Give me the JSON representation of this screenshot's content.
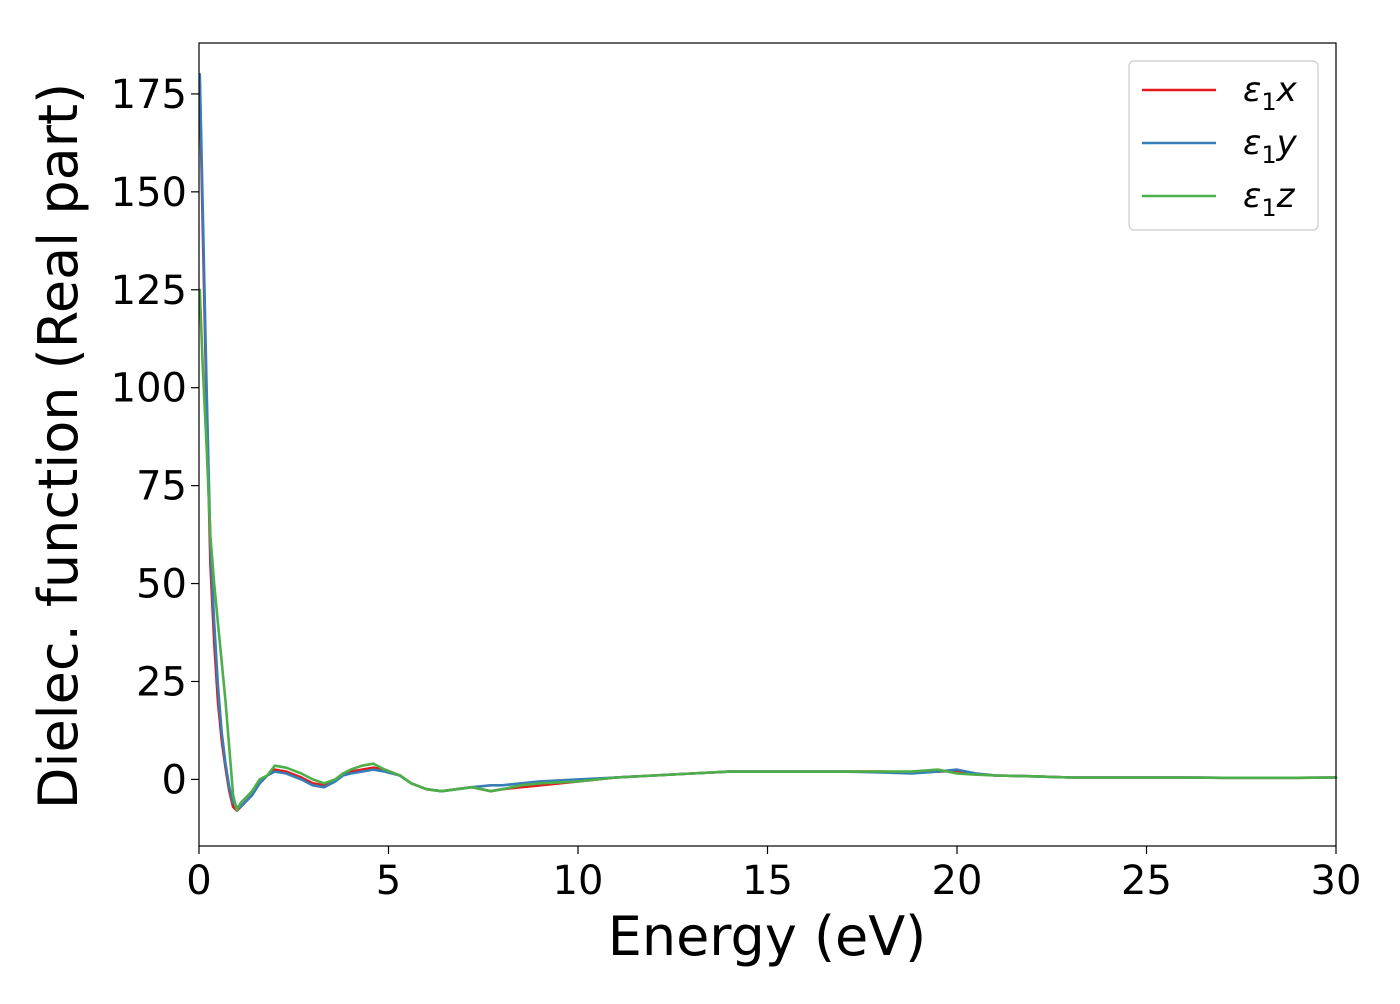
{
  "chart_data": {
    "type": "line",
    "title": "",
    "xlabel": "Energy (eV)",
    "ylabel": "Dielec. function (Real part)",
    "xlim": [
      0,
      30
    ],
    "ylim": [
      -17,
      188
    ],
    "xticks": [
      0,
      5,
      10,
      15,
      20,
      25,
      30
    ],
    "yticks": [
      0,
      25,
      50,
      75,
      100,
      125,
      150,
      175
    ],
    "grid": false,
    "legend_position": "top-right",
    "series": [
      {
        "name": "ε₁x",
        "legend": {
          "sym": "ε",
          "sub": "1",
          "axis": "x"
        },
        "color": "#e41a1c",
        "x": [
          0.02,
          0.1,
          0.2,
          0.3,
          0.4,
          0.5,
          0.6,
          0.7,
          0.8,
          0.9,
          1.0,
          1.1,
          1.2,
          1.4,
          1.6,
          1.8,
          2.0,
          2.3,
          2.7,
          3.0,
          3.3,
          3.6,
          3.8,
          4.0,
          4.3,
          4.6,
          4.9,
          5.3,
          5.6,
          6.0,
          6.4,
          6.8,
          7.2,
          7.7,
          8.0,
          8.5,
          9.0,
          10.0,
          11.0,
          12.0,
          13.0,
          14.0,
          15.0,
          16.0,
          17.0,
          18.0,
          18.8,
          19.5,
          20.0,
          20.5,
          21.0,
          22.0,
          23.0,
          24.0,
          25.0,
          26.0,
          27.0,
          28.0,
          29.0,
          30.0
        ],
        "y": [
          178,
          140,
          95,
          55,
          35,
          20,
          10,
          3,
          -3,
          -7,
          -8,
          -7,
          -6,
          -4,
          -1,
          1,
          2.5,
          2,
          0.5,
          -1,
          -1.5,
          0,
          1.5,
          2,
          2.5,
          3,
          2.5,
          1,
          -1,
          -2.5,
          -3,
          -2.5,
          -2,
          -3,
          -2.5,
          -2,
          -1.5,
          -0.5,
          0.5,
          1,
          1.5,
          2,
          2,
          2,
          2,
          2,
          1.8,
          2,
          2.2,
          1.5,
          1,
          0.8,
          0.5,
          0.5,
          0.5,
          0.5,
          0.4,
          0.4,
          0.4,
          0.5
        ]
      },
      {
        "name": "ε₁y",
        "legend": {
          "sym": "ε",
          "sub": "1",
          "axis": "y"
        },
        "color": "#377eb8",
        "x": [
          0.02,
          0.1,
          0.2,
          0.3,
          0.4,
          0.5,
          0.6,
          0.7,
          0.8,
          0.9,
          1.0,
          1.1,
          1.2,
          1.4,
          1.6,
          1.8,
          2.0,
          2.3,
          2.7,
          3.0,
          3.3,
          3.6,
          3.8,
          4.0,
          4.3,
          4.6,
          4.9,
          5.3,
          5.6,
          6.0,
          6.4,
          6.8,
          7.2,
          7.7,
          8.0,
          8.5,
          9.0,
          10.0,
          11.0,
          12.0,
          13.0,
          14.0,
          15.0,
          16.0,
          17.0,
          18.0,
          18.8,
          19.5,
          20.0,
          20.5,
          21.0,
          22.0,
          23.0,
          24.0,
          25.0,
          26.0,
          27.0,
          28.0,
          29.0,
          30.0
        ],
        "y": [
          180,
          145,
          100,
          60,
          40,
          24,
          12,
          4,
          -2,
          -6,
          -7,
          -7,
          -6,
          -4,
          -1,
          1,
          2,
          1.5,
          0,
          -1.5,
          -2,
          -0.5,
          1,
          1.5,
          2,
          2.5,
          2,
          1,
          -1,
          -2.5,
          -3,
          -2.5,
          -2,
          -1.5,
          -1.5,
          -1,
          -0.5,
          0,
          0.5,
          1,
          1.5,
          2,
          2,
          2,
          2,
          1.8,
          1.5,
          2,
          2.5,
          1.5,
          1,
          0.8,
          0.5,
          0.5,
          0.5,
          0.5,
          0.4,
          0.4,
          0.4,
          0.5
        ]
      },
      {
        "name": "ε₁z",
        "legend": {
          "sym": "ε",
          "sub": "1",
          "axis": "z"
        },
        "color": "#4daf4a",
        "x": [
          0.02,
          0.1,
          0.2,
          0.3,
          0.4,
          0.5,
          0.6,
          0.7,
          0.8,
          0.9,
          1.0,
          1.1,
          1.2,
          1.4,
          1.6,
          1.8,
          2.0,
          2.3,
          2.7,
          3.0,
          3.3,
          3.6,
          3.8,
          4.0,
          4.3,
          4.6,
          4.9,
          5.3,
          5.6,
          6.0,
          6.4,
          6.8,
          7.2,
          7.7,
          8.0,
          8.5,
          9.0,
          10.0,
          11.0,
          12.0,
          13.0,
          14.0,
          15.0,
          16.0,
          17.0,
          18.0,
          18.8,
          19.5,
          20.0,
          20.5,
          21.0,
          22.0,
          23.0,
          24.0,
          25.0,
          26.0,
          27.0,
          28.0,
          29.0,
          30.0
        ],
        "y": [
          125,
          105,
          85,
          62,
          50,
          40,
          30,
          20,
          8,
          -4,
          -8,
          -6,
          -5,
          -3,
          0,
          1,
          3.5,
          3,
          1.5,
          0,
          -1,
          0,
          1.5,
          2.5,
          3.5,
          4,
          2.5,
          1,
          -1,
          -2.5,
          -3,
          -2.5,
          -2,
          -3,
          -2.5,
          -1.5,
          -1,
          -0.5,
          0.5,
          1,
          1.5,
          2,
          2,
          2,
          2,
          2,
          2,
          2.5,
          1.5,
          1.2,
          1,
          0.8,
          0.5,
          0.5,
          0.5,
          0.5,
          0.4,
          0.4,
          0.4,
          0.5
        ]
      }
    ]
  }
}
